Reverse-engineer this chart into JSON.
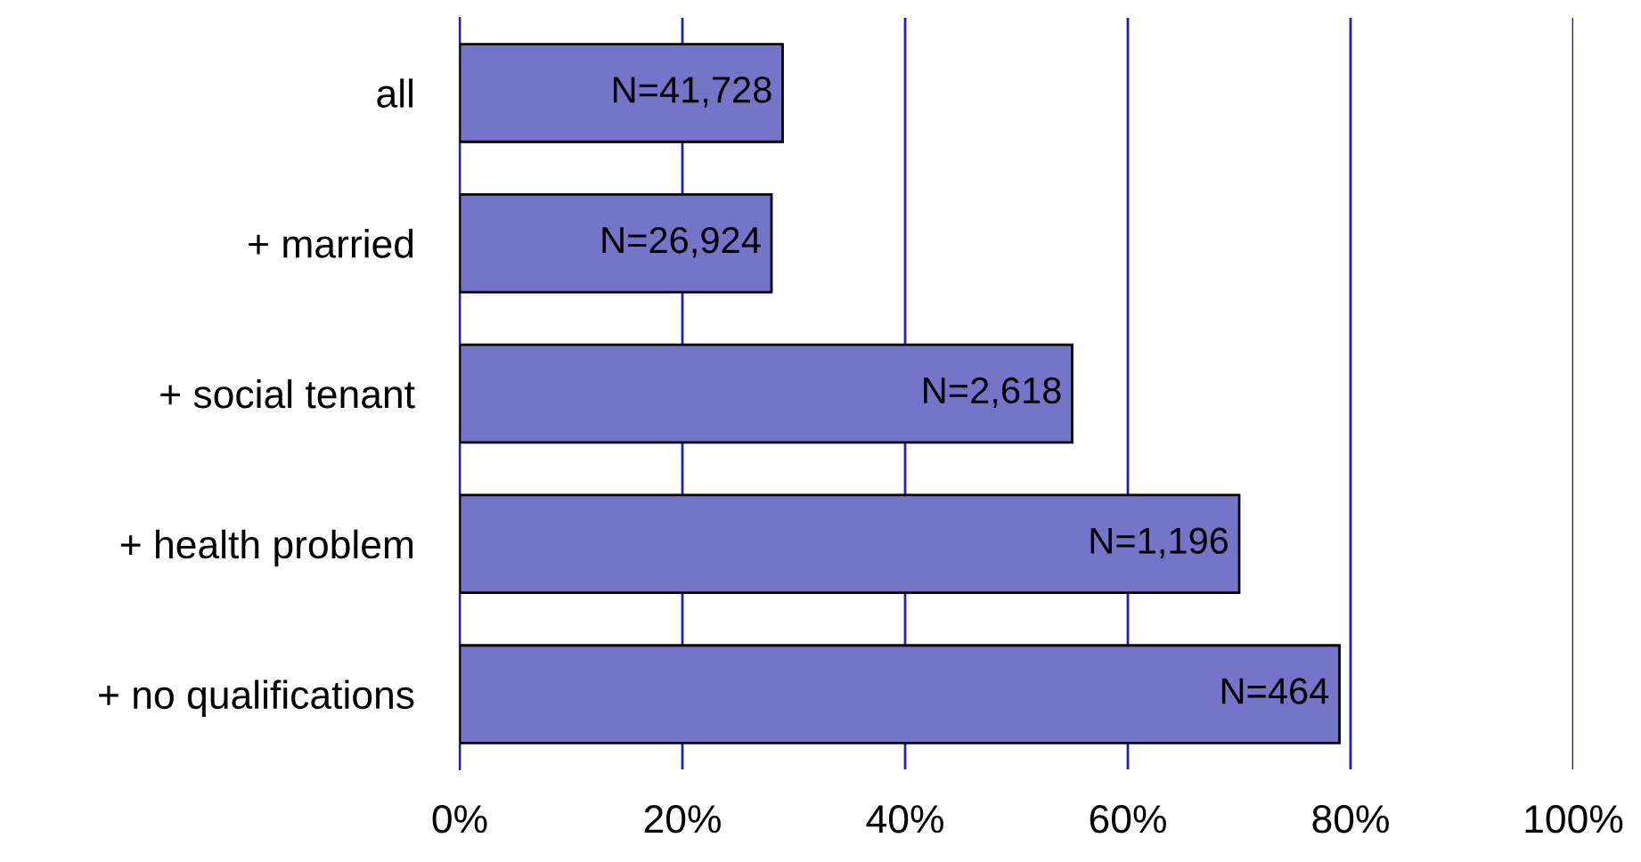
{
  "chart_data": {
    "type": "bar",
    "orientation": "horizontal",
    "categories": [
      "all",
      "+ married",
      "+ social tenant",
      "+ health problem",
      "+ no qualifications"
    ],
    "values": [
      29,
      28,
      55,
      70,
      79
    ],
    "annotations": [
      {
        "text": "N=41,728",
        "x": 29,
        "y": "all"
      },
      {
        "text": "N=26,924",
        "x": 28,
        "y": "+ married"
      },
      {
        "text": "N=2,618",
        "x": 55,
        "y": "+ social tenant"
      },
      {
        "text": "N=1,196",
        "x": 70,
        "y": "+ health problem"
      },
      {
        "text": "N=464",
        "x": 79,
        "y": "+ no qualifications"
      }
    ],
    "color": "#7474c8",
    "xlim": [
      0,
      100
    ],
    "xticks": [
      {
        "value": 0,
        "label": "0%"
      },
      {
        "value": 20,
        "label": "20%"
      },
      {
        "value": 40,
        "label": "40%"
      },
      {
        "value": 60,
        "label": "60%"
      },
      {
        "value": 80,
        "label": "80%"
      },
      {
        "value": 100,
        "label": "100%"
      }
    ],
    "grid": "x"
  }
}
